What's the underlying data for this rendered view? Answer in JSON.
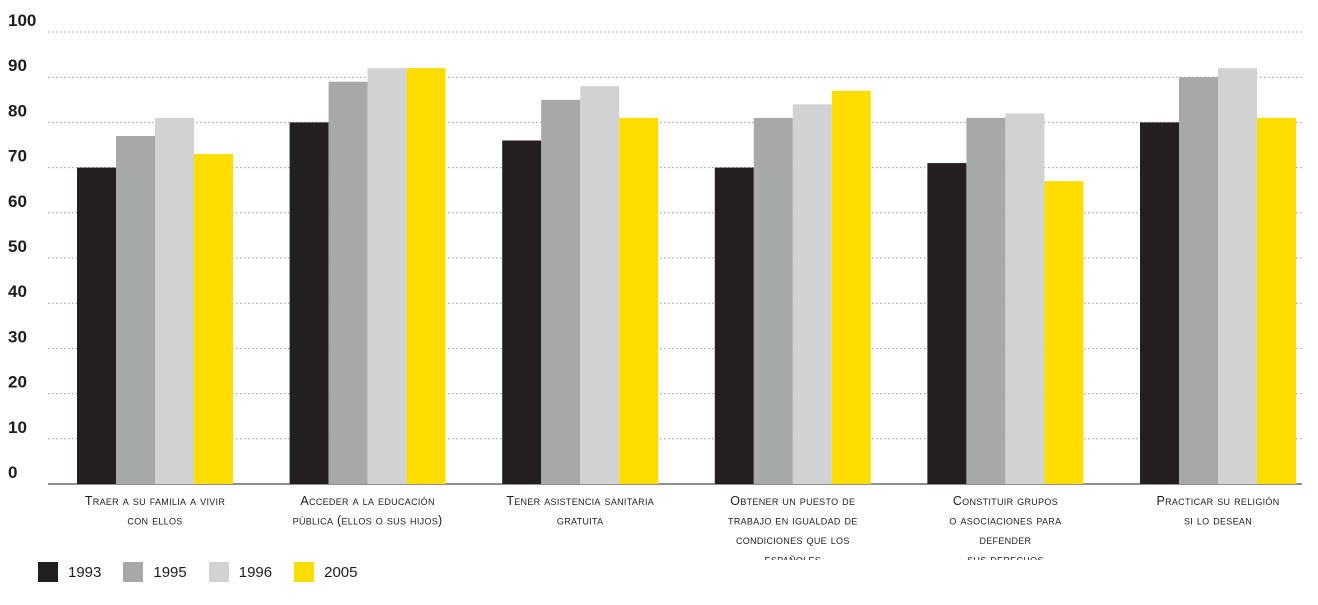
{
  "chart_data": {
    "type": "bar",
    "title": "",
    "xlabel": "",
    "ylabel": "",
    "ylim": [
      0,
      100
    ],
    "yticks": [
      "0",
      "10",
      "20",
      "30",
      "40",
      "50",
      "60",
      "70",
      "80",
      "90",
      "100"
    ],
    "grid": true,
    "legend_position": "bottom-left",
    "categories": [
      [
        "Traer a su familia a vivir",
        "con ellos"
      ],
      [
        "Acceder a la educación",
        "pública (ellos o sus hijos)"
      ],
      [
        "Tener asistencia sanitaria",
        "gratuita"
      ],
      [
        "Obtener un puesto de",
        "trabajo en igualdad de",
        "condiciones que los",
        "españoles"
      ],
      [
        "Constituir grupos",
        "o asociaciones para",
        "defender",
        "sus derechos"
      ],
      [
        "Practicar su religión",
        "si lo desean"
      ]
    ],
    "series": [
      {
        "name": "1993",
        "color": "#231f20",
        "values": [
          70,
          80,
          76,
          70,
          71,
          80
        ]
      },
      {
        "name": "1995",
        "color": "#a7a8aa",
        "values": [
          77,
          89,
          85,
          81,
          81,
          90
        ]
      },
      {
        "name": "1996",
        "color": "#d1d2d4",
        "values": [
          81,
          92,
          88,
          84,
          82,
          92
        ]
      },
      {
        "name": "2005",
        "color": "#ffdd00",
        "values": [
          73,
          92,
          81,
          87,
          67,
          81
        ]
      }
    ]
  }
}
